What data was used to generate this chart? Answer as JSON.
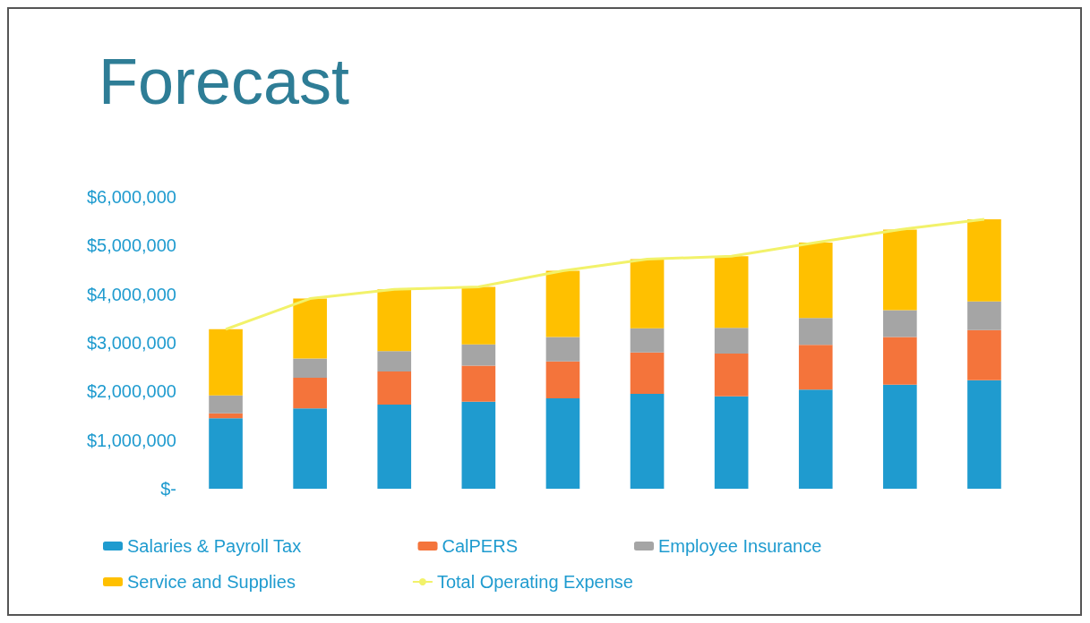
{
  "chart_data": {
    "type": "bar",
    "title": "Forecast",
    "stacked": true,
    "categories": [
      null,
      null,
      null,
      null,
      null,
      null,
      null,
      null,
      null,
      null
    ],
    "series": [
      {
        "name": "Salaries & Payroll Tax",
        "color": "#1f9bcf",
        "values": [
          1450000,
          1650000,
          1730000,
          1790000,
          1860000,
          1950000,
          1900000,
          2040000,
          2140000,
          2230000
        ]
      },
      {
        "name": "CalPERS",
        "color": "#f4743b",
        "values": [
          100000,
          630000,
          680000,
          740000,
          760000,
          850000,
          880000,
          920000,
          980000,
          1030000
        ]
      },
      {
        "name": "Employee Insurance",
        "color": "#a5a5a5",
        "values": [
          370000,
          400000,
          420000,
          440000,
          500000,
          500000,
          530000,
          550000,
          550000,
          590000
        ]
      },
      {
        "name": "Service and Supplies",
        "color": "#ffc000",
        "values": [
          1360000,
          1230000,
          1270000,
          1180000,
          1360000,
          1420000,
          1470000,
          1550000,
          1660000,
          1690000
        ]
      },
      {
        "name": "Total Operating Expense",
        "type": "line",
        "color": "#f2f26a",
        "values": [
          3280000,
          3910000,
          4100000,
          4150000,
          4480000,
          4720000,
          4780000,
          5060000,
          5330000,
          5540000
        ]
      }
    ],
    "ylim": [
      0,
      6000000
    ],
    "yticks": [
      {
        "value": 0,
        "label": "$-"
      },
      {
        "value": 1000000,
        "label": "$1,000,000"
      },
      {
        "value": 2000000,
        "label": "$2,000,000"
      },
      {
        "value": 3000000,
        "label": "$3,000,000"
      },
      {
        "value": 4000000,
        "label": "$4,000,000"
      },
      {
        "value": 5000000,
        "label": "$5,000,000"
      },
      {
        "value": 6000000,
        "label": "$6,000,000"
      }
    ],
    "grid": false,
    "legend": "bottom",
    "marker": "none"
  }
}
